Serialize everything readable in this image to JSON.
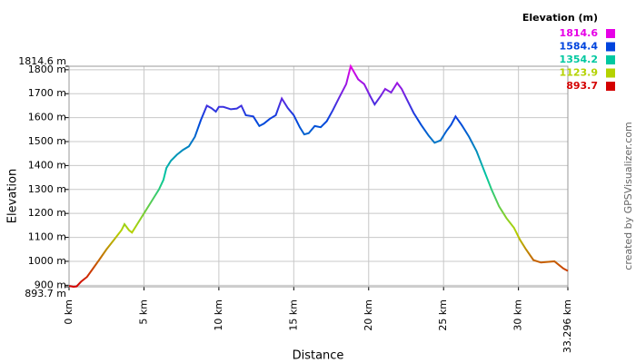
{
  "chart_data": {
    "type": "line",
    "x_label": "Distance",
    "y_label": "Elevation",
    "credit": "created by GPSVisualizer.com",
    "x": [
      0,
      0.3,
      0.5,
      0.8,
      1.2,
      1.6,
      2,
      2.5,
      3,
      3.5,
      3.7,
      4,
      4.2,
      4.5,
      5,
      5.5,
      6,
      6.3,
      6.5,
      6.8,
      7.2,
      7.6,
      8,
      8.4,
      8.8,
      9.2,
      9.5,
      9.8,
      10,
      10.3,
      10.8,
      11.2,
      11.5,
      11.8,
      12.3,
      12.7,
      13,
      13.4,
      13.8,
      14.2,
      14.6,
      15,
      15.4,
      15.7,
      16,
      16.4,
      16.8,
      17.2,
      17.6,
      18,
      18.5,
      18.8,
      19.3,
      19.7,
      20.1,
      20.4,
      20.8,
      21.1,
      21.5,
      21.9,
      22.2,
      22.6,
      23,
      23.5,
      24,
      24.4,
      24.8,
      25.2,
      25.5,
      25.8,
      26.2,
      26.7,
      27.2,
      27.7,
      28.2,
      28.7,
      29.2,
      29.7,
      30.1,
      30.5,
      31,
      31.5,
      32,
      32.4,
      32.7,
      33,
      33.296
    ],
    "values": [
      897,
      893.7,
      895,
      915,
      935,
      970,
      1005,
      1050,
      1090,
      1130,
      1155,
      1130,
      1120,
      1150,
      1200,
      1250,
      1300,
      1340,
      1390,
      1420,
      1445,
      1465,
      1480,
      1520,
      1590,
      1650,
      1640,
      1625,
      1645,
      1645,
      1635,
      1638,
      1650,
      1610,
      1605,
      1565,
      1575,
      1595,
      1610,
      1680,
      1640,
      1610,
      1560,
      1530,
      1535,
      1565,
      1560,
      1585,
      1630,
      1680,
      1740,
      1814.6,
      1760,
      1740,
      1690,
      1655,
      1690,
      1720,
      1705,
      1745,
      1720,
      1670,
      1620,
      1570,
      1525,
      1495,
      1505,
      1545,
      1570,
      1605,
      1570,
      1520,
      1460,
      1380,
      1300,
      1230,
      1180,
      1140,
      1090,
      1050,
      1005,
      995,
      998,
      1000,
      985,
      970,
      960
    ],
    "xlim": [
      0,
      33.296
    ],
    "xticks": [
      {
        "value": 0,
        "label": "0 km"
      },
      {
        "value": 5,
        "label": "5 km"
      },
      {
        "value": 10,
        "label": "10 km"
      },
      {
        "value": 15,
        "label": "15 km"
      },
      {
        "value": 20,
        "label": "20 km"
      },
      {
        "value": 25,
        "label": "25 km"
      },
      {
        "value": 30,
        "label": "30 km"
      },
      {
        "value": 33.296,
        "label": "33.296 km"
      }
    ],
    "ylim": [
      893.7,
      1814.6
    ],
    "yticks": [
      {
        "value": 893.7,
        "label": "893.7 m"
      },
      {
        "value": 900,
        "label": "900 m"
      },
      {
        "value": 1000,
        "label": "1000 m"
      },
      {
        "value": 1100,
        "label": "1100 m"
      },
      {
        "value": 1200,
        "label": "1200 m"
      },
      {
        "value": 1300,
        "label": "1300 m"
      },
      {
        "value": 1400,
        "label": "1400 m"
      },
      {
        "value": 1500,
        "label": "1500 m"
      },
      {
        "value": 1600,
        "label": "1600 m"
      },
      {
        "value": 1700,
        "label": "1700 m"
      },
      {
        "value": 1800,
        "label": "1800 m"
      },
      {
        "value": 1814.6,
        "label": "1814.6 m"
      }
    ],
    "grid": true,
    "color_scale": {
      "title": "Elevation (m)",
      "values": [
        1814.6,
        1584.4,
        1354.2,
        1123.9,
        893.7
      ],
      "colors": [
        "#e600e6",
        "#0044dd",
        "#00c8a0",
        "#b4d200",
        "#d40000"
      ]
    }
  }
}
